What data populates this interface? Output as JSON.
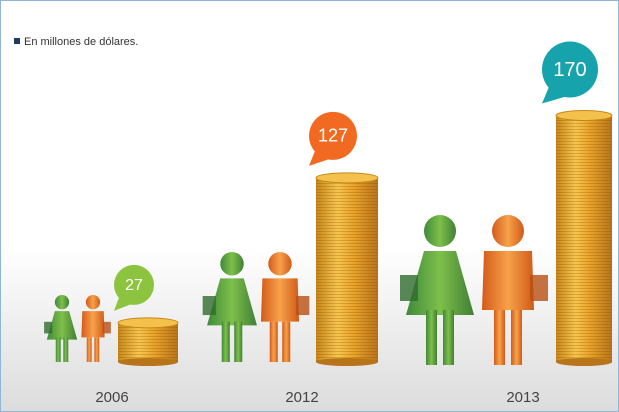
{
  "chart_data": {
    "type": "bar",
    "subtitle": "En millones de dólares.",
    "categories": [
      "2006",
      "2012",
      "2013"
    ],
    "values": [
      27,
      127,
      170
    ],
    "colors": [
      "#8cc43f",
      "#f26a21",
      "#17a3ab"
    ]
  }
}
